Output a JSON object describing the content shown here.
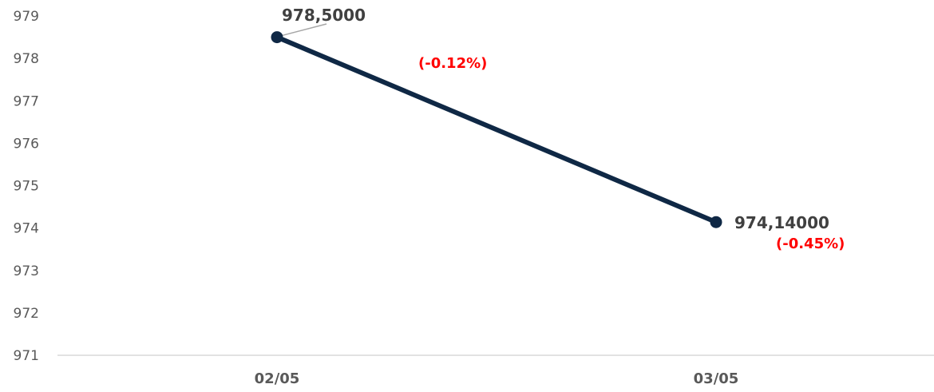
{
  "chart_data": {
    "type": "line",
    "categories": [
      "02/05",
      "03/05"
    ],
    "values": [
      978.5,
      974.14
    ],
    "data_labels": [
      "978,5000",
      "974,14000"
    ],
    "change_labels": [
      "(-0.12%)",
      "(-0.45%)"
    ],
    "y_ticks": [
      "979",
      "978",
      "977",
      "976",
      "975",
      "974",
      "973",
      "972",
      "971"
    ],
    "ylim": [
      971,
      979
    ],
    "grid": false,
    "legend": "none",
    "line_color": "#0f2845",
    "change_color": "#ff0000"
  }
}
